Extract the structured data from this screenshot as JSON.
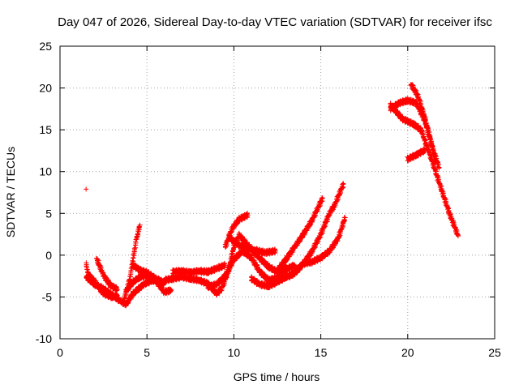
{
  "chart_data": {
    "type": "scatter",
    "title": "Day 047 of 2026, Sidereal Day-to-day VTEC variation (SDTVAR) for receiver ifsc",
    "xlabel": "GPS time / hours",
    "ylabel": "SDTVAR / TECUs",
    "xlim": [
      0,
      25
    ],
    "ylim": [
      -10,
      25
    ],
    "xticks": [
      0,
      5,
      10,
      15,
      20,
      25
    ],
    "yticks": [
      -10,
      -5,
      0,
      5,
      10,
      15,
      20,
      25
    ],
    "grid": true,
    "marker": "plus",
    "color": "#ff0000",
    "outliers": [
      [
        1.5,
        7.9
      ]
    ],
    "tracks": [
      [
        [
          1.5,
          -1.0
        ],
        [
          1.6,
          -2.2
        ],
        [
          2.0,
          -3.2
        ],
        [
          2.5,
          -4.6
        ],
        [
          3.0,
          -5.0
        ],
        [
          3.3,
          -4.8
        ]
      ],
      [
        [
          1.5,
          -2.6
        ],
        [
          2.0,
          -3.5
        ],
        [
          2.5,
          -4.0
        ],
        [
          3.0,
          -4.8
        ],
        [
          3.5,
          -5.5
        ],
        [
          3.8,
          -5.9
        ],
        [
          4.2,
          -4.6
        ],
        [
          4.8,
          -3.5
        ],
        [
          5.3,
          -3.0
        ],
        [
          6.0,
          -3.4
        ]
      ],
      [
        [
          2.1,
          -0.4
        ],
        [
          2.5,
          -2.4
        ],
        [
          2.9,
          -3.6
        ],
        [
          3.3,
          -4.1
        ]
      ],
      [
        [
          3.7,
          -5.2
        ],
        [
          4.0,
          -3.0
        ],
        [
          4.2,
          -0.5
        ],
        [
          4.4,
          2.0
        ],
        [
          4.6,
          3.6
        ]
      ],
      [
        [
          3.8,
          -4.3
        ],
        [
          4.2,
          -3.2
        ],
        [
          4.6,
          -2.6
        ],
        [
          5.0,
          -2.4
        ],
        [
          5.5,
          -3.0
        ],
        [
          6.0,
          -4.4
        ],
        [
          6.4,
          -4.2
        ]
      ],
      [
        [
          4.2,
          -1.2
        ],
        [
          4.6,
          -1.8
        ],
        [
          5.0,
          -2.1
        ],
        [
          5.5,
          -2.8
        ],
        [
          6.0,
          -3.3
        ]
      ],
      [
        [
          6.0,
          -3.0
        ],
        [
          6.5,
          -2.8
        ],
        [
          7.0,
          -2.6
        ],
        [
          7.5,
          -2.8
        ],
        [
          8.0,
          -3.0
        ],
        [
          8.5,
          -3.4
        ],
        [
          9.0,
          -4.6
        ],
        [
          9.3,
          -4.0
        ],
        [
          9.7,
          -1.8
        ],
        [
          10.0,
          1.0
        ],
        [
          10.3,
          2.4
        ],
        [
          10.8,
          1.2
        ],
        [
          11.5,
          -0.4
        ],
        [
          12.0,
          -1.4
        ],
        [
          12.5,
          -2.0
        ],
        [
          13.0,
          -1.4
        ]
      ],
      [
        [
          6.5,
          -2.0
        ],
        [
          7.0,
          -1.9
        ],
        [
          7.5,
          -2.1
        ],
        [
          8.0,
          -1.9
        ],
        [
          8.5,
          -2.0
        ],
        [
          9.0,
          -1.6
        ],
        [
          9.5,
          -1.2
        ]
      ],
      [
        [
          8.5,
          -3.8
        ],
        [
          9.0,
          -3.5
        ],
        [
          9.5,
          -2.5
        ],
        [
          10.0,
          -0.5
        ],
        [
          10.5,
          0.5
        ],
        [
          11.0,
          -0.3
        ],
        [
          11.5,
          -2.0
        ],
        [
          12.0,
          -3.0
        ],
        [
          12.5,
          -2.7
        ],
        [
          13.0,
          -1.7
        ],
        [
          13.5,
          -1.2
        ]
      ],
      [
        [
          9.5,
          1.0
        ],
        [
          9.9,
          3.2
        ],
        [
          10.3,
          4.3
        ],
        [
          10.8,
          4.8
        ]
      ],
      [
        [
          9.7,
          2.2
        ],
        [
          10.2,
          1.3
        ],
        [
          10.7,
          0.8
        ],
        [
          11.2,
          0.6
        ],
        [
          11.8,
          0.3
        ],
        [
          12.4,
          0.5
        ]
      ],
      [
        [
          11.0,
          -2.8
        ],
        [
          11.5,
          -3.5
        ],
        [
          12.0,
          -3.7
        ],
        [
          12.5,
          -3.2
        ],
        [
          13.0,
          -2.6
        ],
        [
          13.5,
          -2.2
        ],
        [
          14.0,
          -1.0
        ],
        [
          14.5,
          0.5
        ],
        [
          15.0,
          2.5
        ],
        [
          15.3,
          4.0
        ],
        [
          15.5,
          5.0
        ],
        [
          15.8,
          6.0
        ],
        [
          16.3,
          8.5
        ]
      ],
      [
        [
          12.5,
          -1.8
        ],
        [
          13.0,
          -0.5
        ],
        [
          13.5,
          1.0
        ],
        [
          14.0,
          2.5
        ],
        [
          14.5,
          4.2
        ],
        [
          14.8,
          5.5
        ],
        [
          15.1,
          6.8
        ]
      ],
      [
        [
          13.2,
          -2.5
        ],
        [
          13.5,
          -2.0
        ],
        [
          14.0,
          -1.0
        ],
        [
          14.5,
          -0.8
        ],
        [
          15.0,
          -0.3
        ],
        [
          15.5,
          0.5
        ],
        [
          16.0,
          2.0
        ],
        [
          16.4,
          4.5
        ]
      ],
      [
        [
          19.0,
          18.0
        ],
        [
          19.4,
          17.0
        ],
        [
          19.7,
          16.3
        ],
        [
          20.0,
          16.0
        ],
        [
          20.4,
          15.6
        ],
        [
          20.8,
          14.9
        ],
        [
          21.0,
          13.6
        ],
        [
          21.2,
          12.5
        ],
        [
          21.6,
          10.0
        ],
        [
          22.0,
          7.5
        ],
        [
          22.4,
          5.0
        ],
        [
          22.9,
          2.3
        ]
      ],
      [
        [
          19.0,
          17.5
        ],
        [
          19.5,
          18.2
        ],
        [
          20.0,
          18.5
        ],
        [
          20.5,
          18.2
        ],
        [
          21.0,
          16.0
        ],
        [
          21.4,
          13.0
        ],
        [
          21.8,
          10.5
        ]
      ],
      [
        [
          20.0,
          11.5
        ],
        [
          20.5,
          12.0
        ],
        [
          21.0,
          12.6
        ]
      ],
      [
        [
          20.2,
          20.4
        ],
        [
          20.6,
          19.0
        ],
        [
          20.9,
          17.0
        ],
        [
          21.3,
          14.0
        ],
        [
          21.6,
          11.0
        ]
      ]
    ]
  }
}
